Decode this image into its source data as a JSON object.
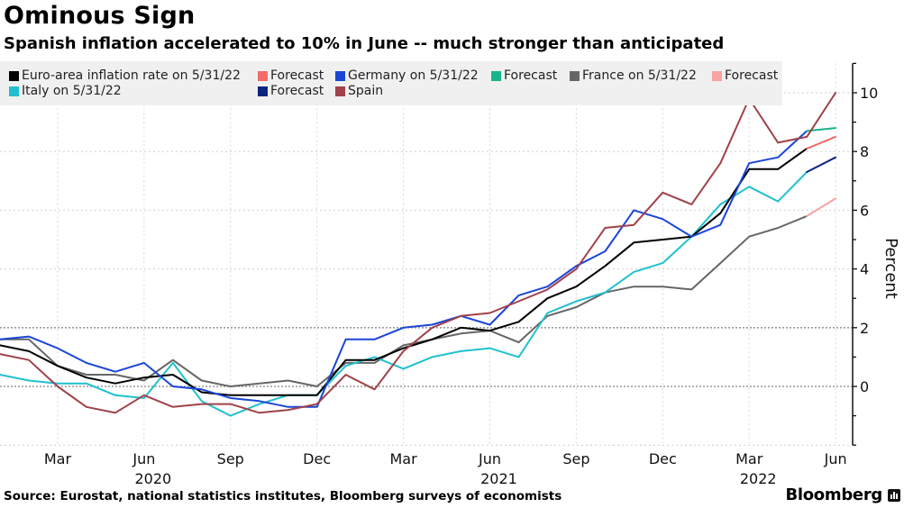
{
  "header": {
    "title": "Ominous Sign",
    "subtitle": "Spanish inflation accelerated to 10% in June -- much stronger than anticipated"
  },
  "footer": {
    "source": "Source: Eurostat, national statistics institutes, Bloomberg surveys of economists",
    "brand": "Bloomberg",
    "brand_icon": "bloomberg-chart-icon"
  },
  "legend": [
    {
      "label": "Euro-area inflation rate on 5/31/22",
      "color": "#000000"
    },
    {
      "label": "Forecast",
      "color": "#f26a6a"
    },
    {
      "label": "Germany on 5/31/22",
      "color": "#1a46d6"
    },
    {
      "label": "Forecast",
      "color": "#16b48a"
    },
    {
      "label": "France on 5/31/22",
      "color": "#666666"
    },
    {
      "label": "Forecast",
      "color": "#f7a3a3"
    },
    {
      "label": "Italy on 5/31/22",
      "color": "#1fc1cf"
    },
    {
      "label": "Forecast",
      "color": "#0d2480"
    },
    {
      "label": "Spain",
      "color": "#a0424a"
    }
  ],
  "chart_data": {
    "type": "line",
    "title": "Ominous Sign",
    "subtitle": "Spanish inflation accelerated to 10% in June -- much stronger than anticipated",
    "xlabel": "",
    "ylabel": "Percent",
    "ylim": [
      -2,
      11
    ],
    "yticks": [
      0,
      2,
      4,
      6,
      8,
      10
    ],
    "grid": true,
    "legend_position": "top-left",
    "y_axis_side": "right",
    "x": [
      "2020-01",
      "2020-02",
      "2020-03",
      "2020-04",
      "2020-05",
      "2020-06",
      "2020-07",
      "2020-08",
      "2020-09",
      "2020-10",
      "2020-11",
      "2020-12",
      "2021-01",
      "2021-02",
      "2021-03",
      "2021-04",
      "2021-05",
      "2021-06",
      "2021-07",
      "2021-08",
      "2021-09",
      "2021-10",
      "2021-11",
      "2021-12",
      "2022-01",
      "2022-02",
      "2022-03",
      "2022-04",
      "2022-05",
      "2022-06"
    ],
    "xticks": [
      {
        "month_index": 2,
        "label": "Mar",
        "year": ""
      },
      {
        "month_index": 5,
        "label": "Jun",
        "year": "2020"
      },
      {
        "month_index": 8,
        "label": "Sep",
        "year": ""
      },
      {
        "month_index": 11,
        "label": "Dec",
        "year": ""
      },
      {
        "month_index": 14,
        "label": "Mar",
        "year": ""
      },
      {
        "month_index": 17,
        "label": "Jun",
        "year": "2021"
      },
      {
        "month_index": 20,
        "label": "Sep",
        "year": ""
      },
      {
        "month_index": 23,
        "label": "Dec",
        "year": ""
      },
      {
        "month_index": 26,
        "label": "Mar",
        "year": "2022"
      },
      {
        "month_index": 29,
        "label": "Jun",
        "year": ""
      }
    ],
    "series": [
      {
        "name": "Euro-area inflation rate on 5/31/22",
        "color": "#000000",
        "start_index": 0,
        "values": [
          1.4,
          1.2,
          0.7,
          0.3,
          0.1,
          0.3,
          0.4,
          -0.2,
          -0.3,
          -0.3,
          -0.3,
          -0.3,
          0.9,
          0.9,
          1.3,
          1.6,
          2.0,
          1.9,
          2.2,
          3.0,
          3.4,
          4.1,
          4.9,
          5.0,
          5.1,
          5.9,
          7.4,
          7.4,
          8.1
        ]
      },
      {
        "name": "Euro-area Forecast",
        "color": "#f26a6a",
        "start_index": 28,
        "values": [
          8.1,
          8.5
        ]
      },
      {
        "name": "Germany on 5/31/22",
        "color": "#1a46d6",
        "start_index": 0,
        "values": [
          1.6,
          1.7,
          1.3,
          0.8,
          0.5,
          0.8,
          0.0,
          -0.1,
          -0.4,
          -0.5,
          -0.7,
          -0.7,
          1.6,
          1.6,
          2.0,
          2.1,
          2.4,
          2.1,
          3.1,
          3.4,
          4.1,
          4.6,
          6.0,
          5.7,
          5.1,
          5.5,
          7.6,
          7.8,
          8.7
        ]
      },
      {
        "name": "Germany Forecast",
        "color": "#16b48a",
        "start_index": 28,
        "values": [
          8.7,
          8.8
        ]
      },
      {
        "name": "France on 5/31/22",
        "color": "#666666",
        "start_index": 0,
        "values": [
          1.6,
          1.6,
          0.7,
          0.4,
          0.4,
          0.2,
          0.9,
          0.2,
          0.0,
          0.1,
          0.2,
          0.0,
          0.8,
          0.8,
          1.4,
          1.6,
          1.8,
          1.9,
          1.5,
          2.4,
          2.7,
          3.2,
          3.4,
          3.4,
          3.3,
          4.2,
          5.1,
          5.4,
          5.8
        ]
      },
      {
        "name": "France Forecast",
        "color": "#f7a3a3",
        "start_index": 28,
        "values": [
          5.8,
          6.4
        ]
      },
      {
        "name": "Italy on 5/31/22",
        "color": "#1fc1cf",
        "start_index": 0,
        "values": [
          0.4,
          0.2,
          0.1,
          0.1,
          -0.3,
          -0.4,
          0.8,
          -0.5,
          -1.0,
          -0.6,
          -0.3,
          -0.3,
          0.7,
          1.0,
          0.6,
          1.0,
          1.2,
          1.3,
          1.0,
          2.5,
          2.9,
          3.2,
          3.9,
          4.2,
          5.1,
          6.2,
          6.8,
          6.3,
          7.3
        ]
      },
      {
        "name": "Italy Forecast",
        "color": "#0d2480",
        "start_index": 28,
        "values": [
          7.3,
          7.8
        ]
      },
      {
        "name": "Spain",
        "color": "#a0424a",
        "start_index": 0,
        "values": [
          1.1,
          0.9,
          0.0,
          -0.7,
          -0.9,
          -0.3,
          -0.7,
          -0.6,
          -0.6,
          -0.9,
          -0.8,
          -0.6,
          0.4,
          -0.1,
          1.2,
          2.0,
          2.4,
          2.5,
          2.9,
          3.3,
          4.0,
          5.4,
          5.5,
          6.6,
          6.2,
          7.6,
          9.8,
          8.3,
          8.5,
          10.0
        ]
      }
    ]
  }
}
